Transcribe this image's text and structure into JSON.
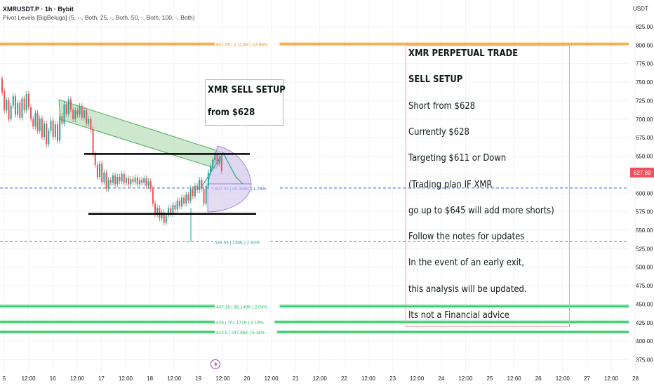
{
  "header": {
    "symbol": "XMRUSDT.P · 1h · Bybit",
    "indicator": "Pivot Levels [BigBeluga] (5, --, Both, 25, -, Both, 50, -, Both, 100, -, Both)",
    "currency": "USDT"
  },
  "colors": {
    "orange": "#f7931a",
    "green": "#22c55e",
    "teal": "#26a69a",
    "blue": "#2962ff",
    "red": "#ef5350",
    "purple": "#b39ddb",
    "price_badge": "#f0515f"
  },
  "icons": {
    "event": "lightning-icon"
  },
  "chart_data": {
    "type": "candlestick",
    "y_axis_ticks": [
      "825.00",
      "800.00",
      "775.00",
      "750.00",
      "725.00",
      "700.00",
      "675.00",
      "650.00",
      "625.00",
      "600.00",
      "575.00",
      "550.00",
      "525.00",
      "500.00",
      "475.00",
      "450.00",
      "425.00",
      "400.00",
      "375.00"
    ],
    "ylim": [
      367.5,
      832.5
    ],
    "x_axis_ticks": [
      "5",
      "12:00",
      "16",
      "12:00",
      "17",
      "12:00",
      "18",
      "12:00",
      "19",
      "12:00",
      "20",
      "12:00",
      "21",
      "12:00",
      "22",
      "12:00",
      "23",
      "12:00",
      "24",
      "12:00",
      "25",
      "12:00",
      "26",
      "12:00",
      "27",
      "12:00",
      "28"
    ],
    "last_price": "627.89",
    "pivot_levels": [
      {
        "price": 801.59,
        "label": "801.59 | 2.113M | 43.98%",
        "color": "#f7931a"
      },
      {
        "price": 607.05,
        "label": "607.05 | 85.355K | 1.78%",
        "color": "#2962ff",
        "dashed": true
      },
      {
        "price": 534.54,
        "label": "534.54 | 136K | 2.83%",
        "color": "#26a69a",
        "dashed": true
      },
      {
        "price": 447.16,
        "label": "447.16 | 98.149K | 2.04%",
        "color": "#22c55e"
      },
      {
        "price": 426,
        "label": "426 | 201.177K | 4.19%",
        "color": "#22c55e"
      },
      {
        "price": 412.5,
        "label": "412.5 | 247.85K | 5.16%",
        "color": "#22c55e"
      }
    ],
    "horizontal_lines": [
      653,
      572
    ],
    "candles": [
      [
        755,
        736
      ],
      [
        738,
        712
      ],
      [
        712,
        726
      ],
      [
        726,
        700
      ],
      [
        700,
        718
      ],
      [
        718,
        731
      ],
      [
        731,
        706
      ],
      [
        706,
        722
      ],
      [
        722,
        702
      ],
      [
        702,
        728
      ],
      [
        728,
        712
      ],
      [
        712,
        734
      ],
      [
        734,
        716
      ],
      [
        716,
        700
      ],
      [
        700,
        690
      ],
      [
        690,
        708
      ],
      [
        708,
        684
      ],
      [
        684,
        701
      ],
      [
        701,
        676
      ],
      [
        676,
        694
      ],
      [
        694,
        666
      ],
      [
        666,
        684
      ],
      [
        684,
        698
      ],
      [
        698,
        676
      ],
      [
        676,
        693
      ],
      [
        693,
        671
      ],
      [
        671,
        704
      ],
      [
        704,
        694
      ],
      [
        694,
        720
      ],
      [
        720,
        707
      ],
      [
        707,
        727
      ],
      [
        727,
        713
      ],
      [
        713,
        700
      ],
      [
        700,
        712
      ],
      [
        712,
        706
      ],
      [
        706,
        718
      ],
      [
        718,
        702
      ],
      [
        702,
        712
      ],
      [
        712,
        694
      ],
      [
        694,
        700
      ],
      [
        700,
        686
      ],
      [
        686,
        653
      ],
      [
        653,
        638
      ],
      [
        638,
        622
      ],
      [
        622,
        640
      ],
      [
        640,
        615
      ],
      [
        615,
        628
      ],
      [
        628,
        606
      ],
      [
        606,
        618
      ],
      [
        618,
        614
      ],
      [
        614,
        624
      ],
      [
        624,
        612
      ],
      [
        612,
        622
      ],
      [
        622,
        616
      ],
      [
        616,
        626
      ],
      [
        626,
        614
      ],
      [
        614,
        620
      ],
      [
        620,
        612
      ],
      [
        612,
        619
      ],
      [
        619,
        615
      ],
      [
        615,
        621
      ],
      [
        621,
        612
      ],
      [
        612,
        618
      ],
      [
        618,
        614
      ],
      [
        614,
        620
      ],
      [
        620,
        610
      ],
      [
        610,
        616
      ],
      [
        616,
        606
      ],
      [
        606,
        586
      ],
      [
        586,
        572
      ],
      [
        572,
        580
      ],
      [
        580,
        566
      ],
      [
        566,
        574
      ],
      [
        574,
        560
      ],
      [
        560,
        570
      ],
      [
        570,
        580
      ],
      [
        580,
        572
      ],
      [
        572,
        584
      ],
      [
        584,
        578
      ],
      [
        578,
        590
      ],
      [
        590,
        582
      ],
      [
        582,
        594
      ],
      [
        594,
        586
      ],
      [
        586,
        598
      ],
      [
        598,
        590
      ],
      [
        590,
        606
      ],
      [
        606,
        596
      ],
      [
        596,
        610
      ],
      [
        610,
        604
      ],
      [
        604,
        618
      ],
      [
        618,
        606
      ],
      [
        606,
        586
      ],
      [
        586,
        610
      ],
      [
        610,
        628
      ],
      [
        628,
        636
      ],
      [
        636,
        645
      ],
      [
        645,
        652
      ],
      [
        652,
        640
      ],
      [
        640,
        648
      ],
      [
        648,
        630
      ]
    ]
  },
  "annotations": {
    "setup_box": [
      "XMR SELL SETUP",
      "from $628"
    ],
    "notes": [
      {
        "text": "XMR PERPETUAL TRADE",
        "bold": true
      },
      {
        "text": "SELL SETUP",
        "bold": true
      },
      {
        "text": "Short from $628",
        "bold": false
      },
      {
        "text": "Currently $628",
        "bold": false
      },
      {
        "text": "Targeting $611 or Down",
        "bold": false
      },
      {
        "text": "(Trading plan IF XMR",
        "bold": false
      },
      {
        "text": "go up to $645 will add more shorts)",
        "bold": false
      },
      {
        "text": "Follow the notes for updates",
        "bold": false
      },
      {
        "text": "In the event of an early exit,",
        "bold": false
      },
      {
        "text": "this analysis will be updated.",
        "bold": false
      },
      {
        "text": "Its not a Financial advice",
        "bold": false
      }
    ]
  }
}
